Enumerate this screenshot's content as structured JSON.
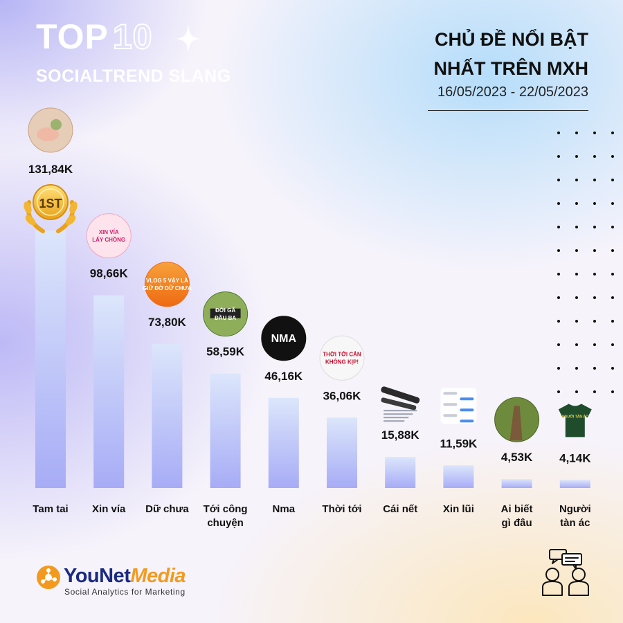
{
  "header": {
    "top_word": "TOP",
    "top_number": "10",
    "subtitle": "SOCIALTREND SLANG",
    "heading_line1": "CHỦ ĐỀ NỔI BẬT",
    "heading_line2": "NHẤT TRÊN MXH",
    "date_range": "16/05/2023 - 22/05/2023"
  },
  "brand": {
    "name_part1": "YouNet",
    "name_part2": "Media",
    "tagline": "Social Analytics for Marketing"
  },
  "rank_badge": "1ST",
  "chart_data": {
    "type": "bar",
    "title": "",
    "xlabel": "",
    "ylabel": "",
    "ylim": [
      0,
      140
    ],
    "unit": "K",
    "categories": [
      [
        "Tam tai"
      ],
      [
        "Xin vía"
      ],
      [
        "Dữ chưa"
      ],
      [
        "Tới công",
        "chuyện"
      ],
      [
        "Nma"
      ],
      [
        "Thời tới"
      ],
      [
        "Cái nết"
      ],
      [
        "Xin lũi"
      ],
      [
        "Ai biết",
        "gì đâu"
      ],
      [
        "Người",
        "tàn ác"
      ]
    ],
    "values": [
      131.84,
      98.66,
      73.8,
      58.59,
      46.16,
      36.06,
      15.88,
      11.59,
      4.53,
      4.14
    ],
    "value_labels": [
      "131,84K",
      "98,66K",
      "73,80K",
      "58,59K",
      "46,16K",
      "36,06K",
      "15,88K",
      "11,59K",
      "4,53K",
      "4,14K"
    ],
    "thumbnail_texts": [
      "",
      "XIN VÍA LẤY CHỒNG",
      "VLOG 5 VẬY LÀ GIỮ ĐỜ DỮ CHƯA",
      "ĐỜI GÃ ĐẦU BA",
      "NMA",
      "THỜI TỚI CẢN KHÔNG KỊP!",
      "",
      "",
      "",
      "NGƯỜI TÀN ÁC"
    ],
    "colors": {
      "bar_top": "#dce6fb",
      "bar_bottom": "#a7acf6",
      "label": "#111111"
    }
  }
}
